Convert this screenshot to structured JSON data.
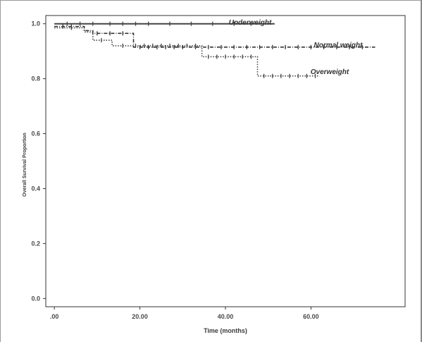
{
  "chart_data": {
    "type": "line",
    "title": "",
    "xlabel": "Time (months)",
    "ylabel": "Overall Survival Proportion",
    "xlim": [
      -2,
      82
    ],
    "ylim": [
      -0.03,
      1.03
    ],
    "x_ticks": [
      0,
      20,
      40,
      60
    ],
    "x_tick_labels": [
      ".00",
      "20.00",
      "40.00",
      "60.00"
    ],
    "y_ticks": [
      0.0,
      0.2,
      0.4,
      0.6,
      0.8,
      1.0
    ],
    "y_tick_labels": [
      "0.0",
      "0.2",
      "0.4",
      "0.6",
      "0.8",
      "1.0"
    ],
    "grid": false,
    "legend": "none (series labeled directly on the curves)",
    "series": [
      {
        "name": "Underweight",
        "color": "#444444",
        "line_style": "solid",
        "points": [
          [
            0,
            1.0
          ],
          [
            51.5,
            1.0
          ]
        ],
        "censor_times": [
          3,
          6,
          9,
          13,
          16,
          19,
          22,
          27,
          32,
          37,
          42,
          46
        ]
      },
      {
        "name": "Normal weight",
        "color": "#333333",
        "line_style": "dashdot",
        "points": [
          [
            0,
            0.99
          ],
          [
            7,
            0.99
          ],
          [
            7,
            0.975
          ],
          [
            9,
            0.975
          ],
          [
            9,
            0.965
          ],
          [
            18.5,
            0.965
          ],
          [
            18.5,
            0.915
          ],
          [
            75,
            0.915
          ]
        ],
        "censor_times": [
          2,
          4,
          10,
          13,
          16,
          20,
          22,
          24,
          26,
          28,
          30,
          33,
          36,
          39,
          42,
          45,
          48,
          51,
          54,
          57,
          60,
          63,
          66,
          69,
          72
        ]
      },
      {
        "name": "Overweight",
        "color": "#444444",
        "line_style": "dotted",
        "points": [
          [
            0,
            0.985
          ],
          [
            7,
            0.985
          ],
          [
            7,
            0.97
          ],
          [
            9,
            0.97
          ],
          [
            9,
            0.94
          ],
          [
            13.5,
            0.94
          ],
          [
            13.5,
            0.92
          ],
          [
            34.5,
            0.92
          ],
          [
            34.5,
            0.88
          ],
          [
            47.5,
            0.88
          ],
          [
            47.5,
            0.81
          ],
          [
            62,
            0.81
          ]
        ],
        "censor_times": [
          4,
          11,
          16,
          19,
          21,
          23,
          25,
          27,
          29,
          31,
          33,
          36,
          38,
          40,
          42,
          44,
          46,
          49,
          51,
          53,
          55,
          57,
          59,
          61
        ]
      }
    ]
  }
}
